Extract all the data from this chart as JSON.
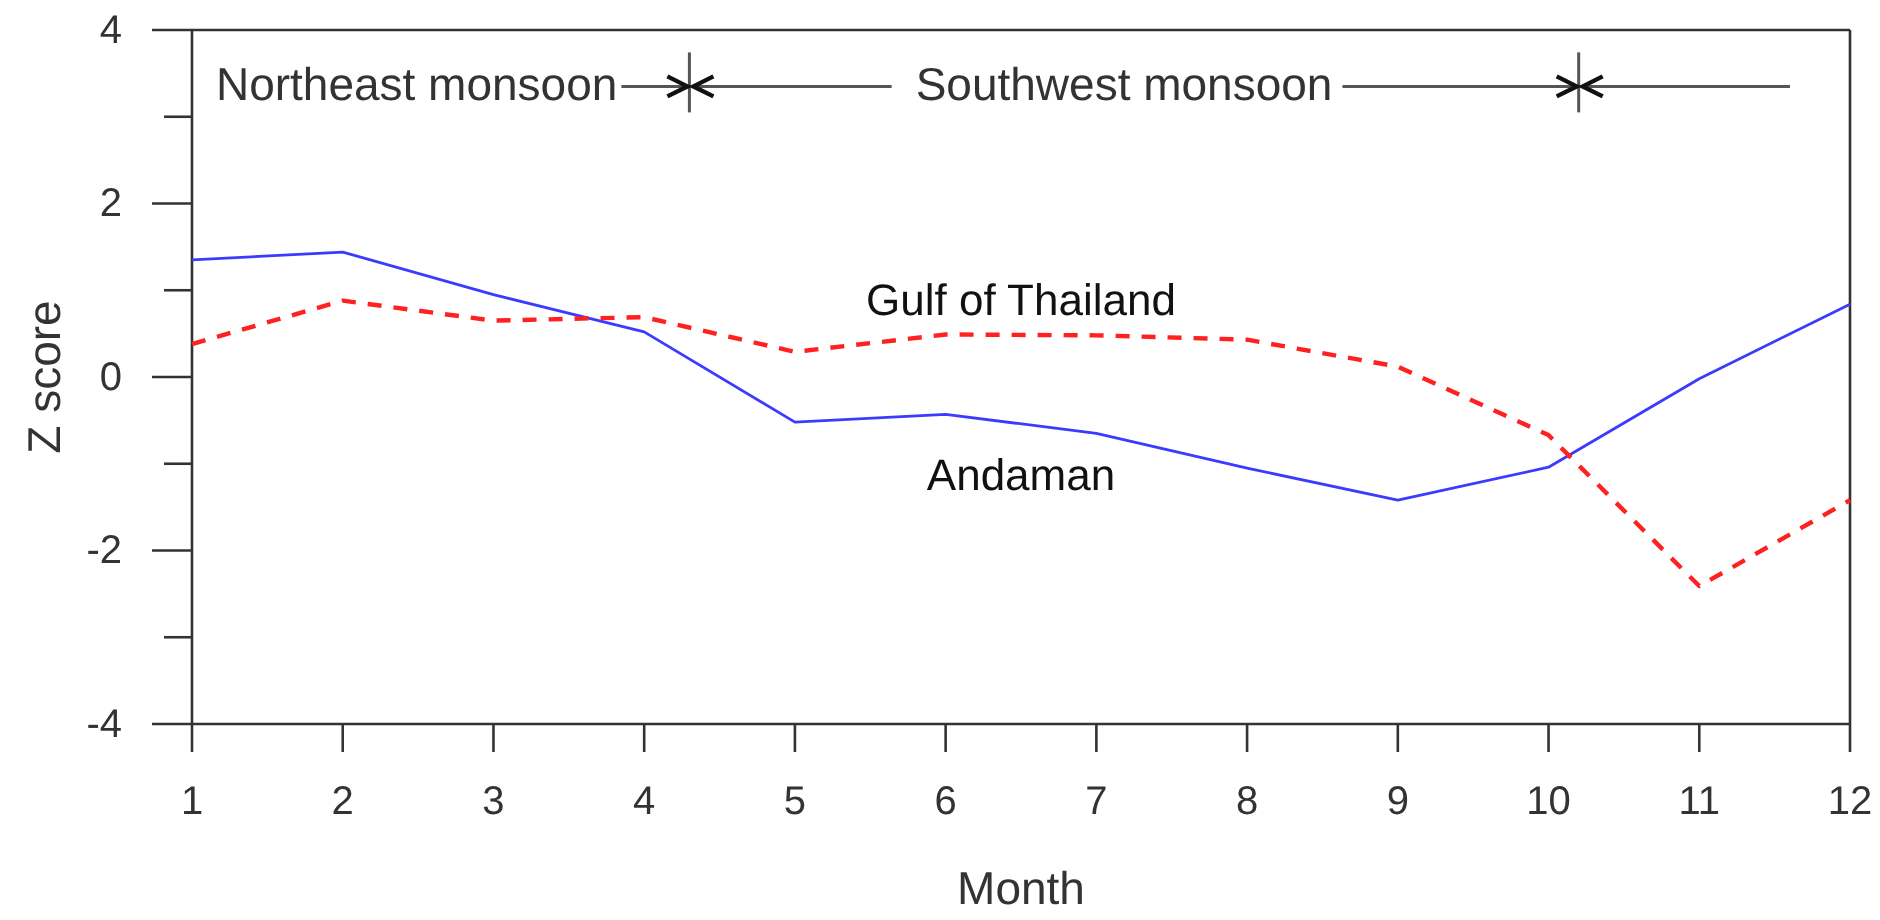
{
  "chart_data": {
    "type": "line",
    "xlabel": "Month",
    "ylabel": "Z score",
    "x": [
      1,
      2,
      3,
      4,
      5,
      6,
      7,
      8,
      9,
      10,
      11,
      12
    ],
    "xlim": [
      1,
      12
    ],
    "xticks": [
      1,
      2,
      3,
      4,
      5,
      6,
      7,
      8,
      9,
      10,
      11,
      12
    ],
    "ylim": [
      -4,
      4
    ],
    "yticks": [
      -4,
      {
        "value": -3,
        "label": null
      },
      -2,
      {
        "value": -1,
        "label": null
      },
      0,
      {
        "value": 1,
        "label": null
      },
      2,
      {
        "value": 3,
        "label": null
      },
      4
    ],
    "series": [
      {
        "name": "Andaman",
        "color": "#3b3bff",
        "line_style": "solid",
        "values": [
          1.35,
          1.44,
          0.95,
          0.52,
          -0.52,
          -0.43,
          -0.65,
          -1.05,
          -1.42,
          -1.04,
          -0.02,
          0.84
        ]
      },
      {
        "name": "Gulf of Thailand",
        "color": "#ff2020",
        "line_style": "dashed",
        "values": [
          0.38,
          0.88,
          0.65,
          0.69,
          0.29,
          0.49,
          0.48,
          0.43,
          0.12,
          -0.67,
          -2.41,
          -1.42
        ]
      }
    ],
    "ref_lines": [
      {
        "axis": "x",
        "value": 4.3
      },
      {
        "axis": "x",
        "value": 10.2
      }
    ],
    "annotations": [
      {
        "text": "Northeast monsoon",
        "x": 4.3,
        "y": 3.35
      },
      {
        "text": "Southwest monsoon",
        "x": 10.2,
        "y": 3.35
      }
    ]
  }
}
